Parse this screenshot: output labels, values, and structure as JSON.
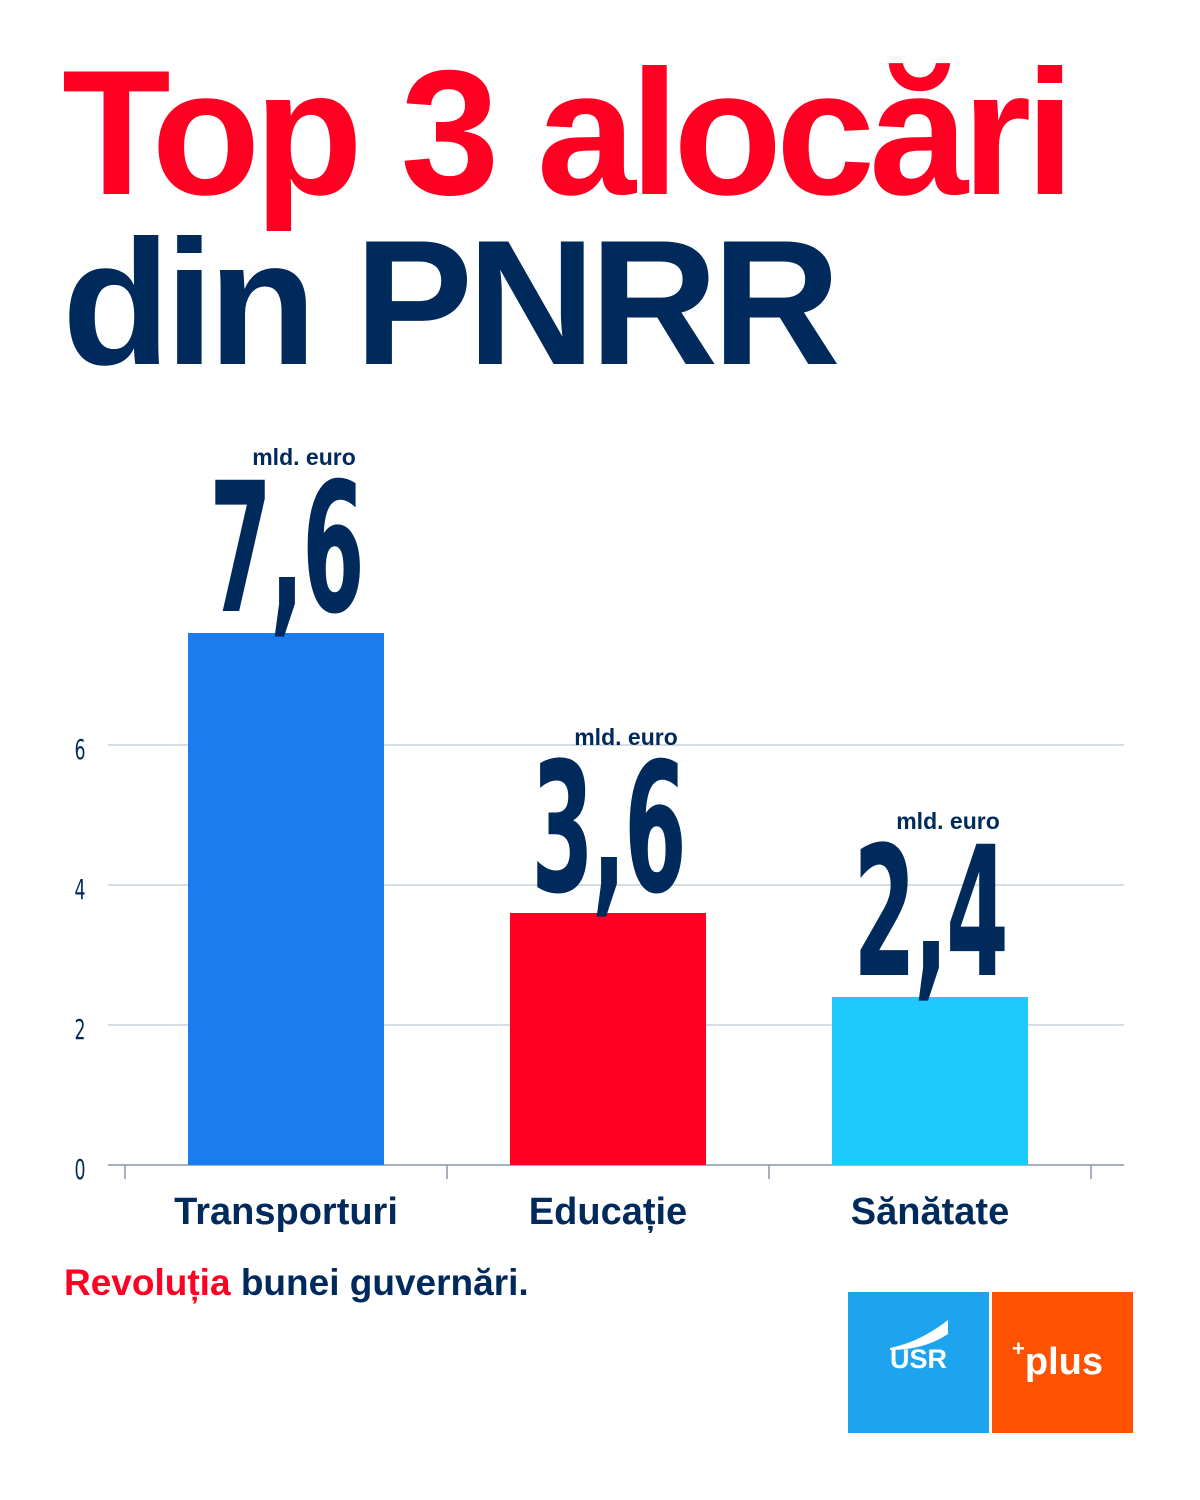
{
  "title": {
    "line1": "Top 3 alocări",
    "line2": "din PNRR"
  },
  "chart_data": {
    "type": "bar",
    "categories": [
      "Transporturi",
      "Educație",
      "Sănătate"
    ],
    "values": [
      7.6,
      3.6,
      2.4
    ],
    "value_labels": [
      "7,6",
      "3,6",
      "2,4"
    ],
    "unit_label": "mld. euro",
    "bar_colors": [
      "#1a7cee",
      "#ff0022",
      "#1ec9fd"
    ],
    "yticks": [
      0,
      2,
      4,
      6
    ],
    "ylim": [
      0,
      8
    ],
    "grid": true
  },
  "footer": {
    "highlight": "Revoluția",
    "rest": "bunei guvernări."
  },
  "logos": {
    "usr": "USR",
    "plus_sign": "+",
    "plus": "plus"
  },
  "colors": {
    "navy": "#002a5c",
    "red": "#ff0022",
    "grid": "#c7d0dc",
    "usr": "#1ea4ef",
    "plus": "#ff5200"
  }
}
